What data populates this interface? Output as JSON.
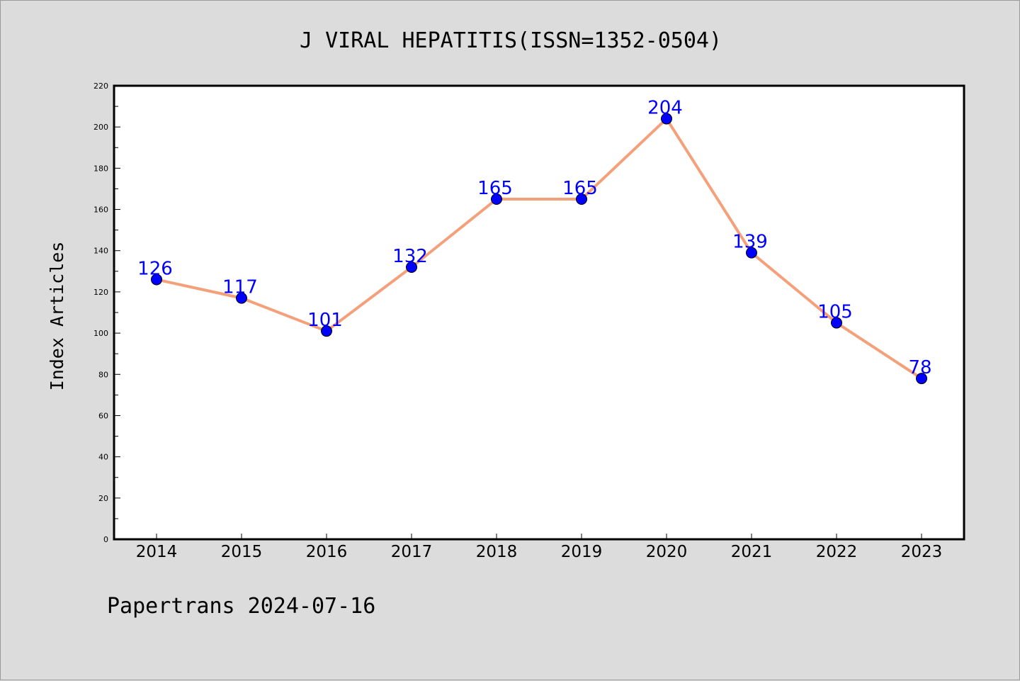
{
  "colors": {
    "background": "#dcdcdc",
    "plot_background": "#ffffff",
    "line": "#f4a07a",
    "marker": "#0000ff",
    "data_label": "#0000ff"
  },
  "chart_data": {
    "type": "line",
    "title": "J VIRAL HEPATITIS(ISSN=1352-0504)",
    "xlabel": "",
    "ylabel": "Index Articles",
    "categories": [
      "2014",
      "2015",
      "2016",
      "2017",
      "2018",
      "2019",
      "2020",
      "2021",
      "2022",
      "2023"
    ],
    "series": [
      {
        "values": [
          126,
          117,
          101,
          132,
          165,
          165,
          204,
          139,
          105,
          78
        ]
      }
    ],
    "ylim": [
      0,
      220
    ],
    "yticks": [
      0,
      20,
      40,
      60,
      80,
      100,
      120,
      140,
      160,
      180,
      200,
      220
    ],
    "grid": false,
    "legend": "none",
    "data_labels": true
  },
  "footer": "Papertrans 2024-07-16"
}
